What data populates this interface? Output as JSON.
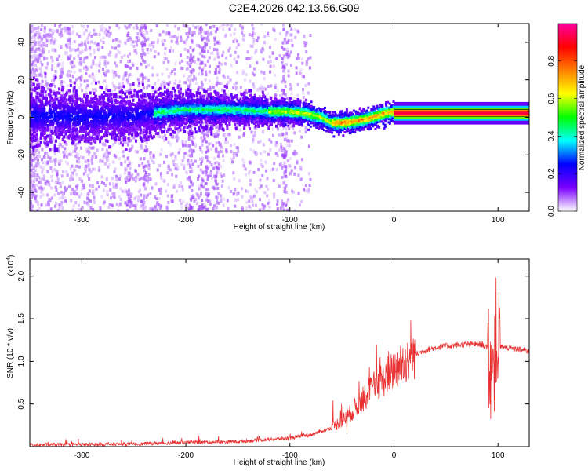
{
  "title": "C2E4.2026.042.13.56.G09",
  "chart_data": [
    {
      "type": "heatmap",
      "xlabel": "Height of straight line (km)",
      "ylabel": "Frequency (Hz)",
      "xlim": [
        -350,
        130
      ],
      "ylim": [
        -50,
        50
      ],
      "xticks": [
        -300,
        -200,
        -100,
        0,
        100
      ],
      "yticks": [
        -40,
        -20,
        0,
        20,
        40
      ],
      "colorbar": {
        "label": "Normalized spectral amplitude",
        "range": [
          0,
          1
        ],
        "ticks": [
          0.0,
          0.2,
          0.4,
          0.6,
          0.8
        ],
        "colors": [
          "#ffffff",
          "#7a00ff",
          "#0000ff",
          "#00ffff",
          "#00ff00",
          "#ffff00",
          "#ff8000",
          "#ff0000",
          "#ff00a0"
        ]
      },
      "centerline": {
        "x": [
          -350,
          -300,
          -250,
          -220,
          -200,
          -150,
          -120,
          -100,
          -85,
          -70,
          -60,
          -50,
          -35,
          -20,
          -10,
          0,
          20,
          50,
          85,
          95,
          100,
          130
        ],
        "y": [
          1,
          0,
          1,
          3,
          4,
          4,
          3,
          3,
          2,
          0,
          -3,
          -3,
          -2,
          0,
          2,
          3,
          2,
          2,
          3,
          1,
          2,
          2
        ]
      }
    },
    {
      "type": "line",
      "xlabel": "Height of straight line (km)",
      "ylabel": "SNR (10 * v/v)",
      "yscale_label": "(x10",
      "yscale_exp": "4",
      "xlim": [
        -350,
        130
      ],
      "ylim": [
        0,
        2.2
      ],
      "xticks": [
        -300,
        -200,
        -100,
        0,
        100
      ],
      "yticks": [
        0.5,
        1.0,
        1.5,
        2.0
      ],
      "ytick_labels": [
        "0.5",
        "1.0",
        "1.5",
        "2.0"
      ],
      "color": "#e83030",
      "envelope": {
        "x": [
          -350,
          -250,
          -200,
          -150,
          -100,
          -80,
          -60,
          -45,
          -30,
          -15,
          0,
          10,
          20,
          35,
          50,
          70,
          85,
          90,
          95,
          98,
          102,
          110,
          130
        ],
        "y": [
          0.02,
          0.03,
          0.05,
          0.06,
          0.1,
          0.14,
          0.22,
          0.35,
          0.55,
          0.75,
          0.9,
          1.0,
          1.08,
          1.15,
          1.18,
          1.2,
          1.2,
          1.15,
          0.9,
          1.3,
          1.17,
          1.16,
          1.12
        ]
      }
    }
  ]
}
